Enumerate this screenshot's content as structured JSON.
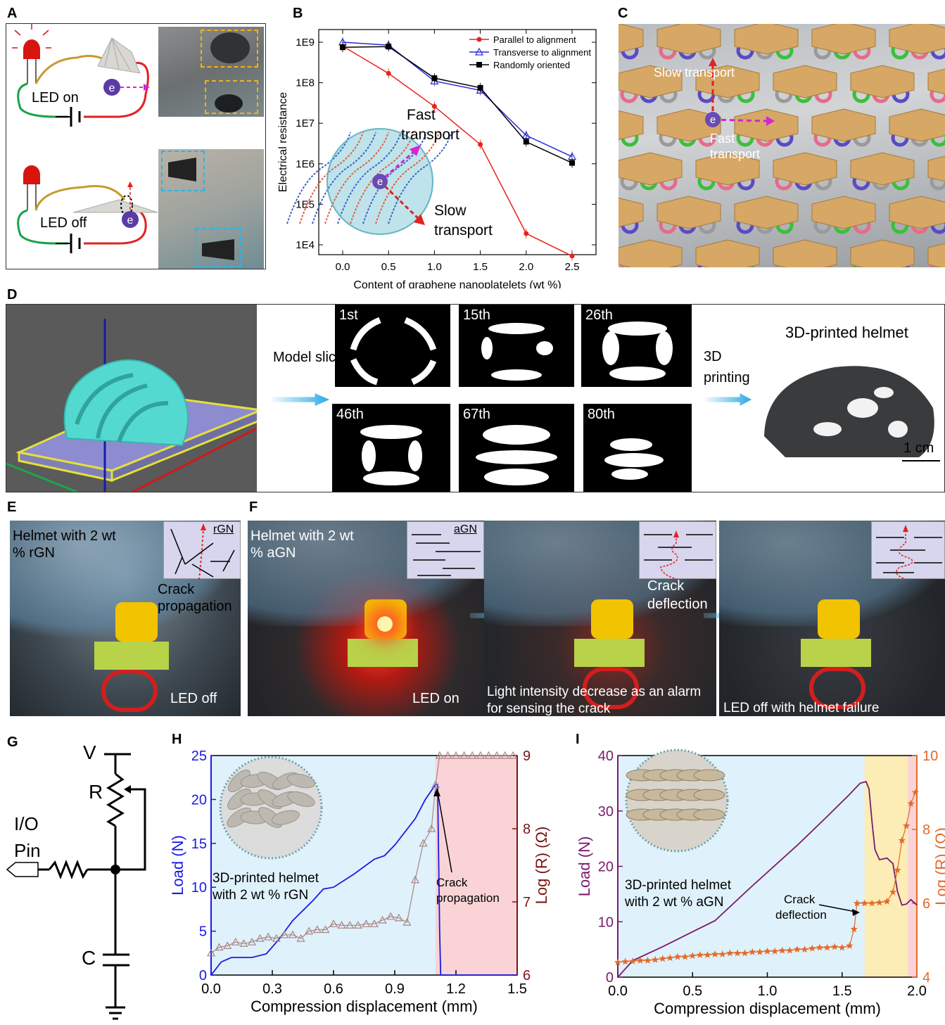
{
  "panels": {
    "A": {
      "label": "A",
      "led_on": "LED on",
      "led_off": "LED off",
      "electron": "e"
    },
    "B": {
      "label": "B"
    },
    "C": {
      "label": "C",
      "slow": "Slow transport",
      "fast": "Fast transport",
      "electron": "e"
    },
    "D": {
      "label": "D",
      "model_sliced": "Model sliced",
      "printing": "3D printing",
      "helmet_title": "3D-printed helmet",
      "scale": "1 cm",
      "slices": [
        "1st",
        "15th",
        "26th",
        "46th",
        "67th",
        "80th"
      ]
    },
    "E": {
      "label": "E",
      "caption": "Helmet with 2 wt % rGN",
      "inset_label": "rGN",
      "crack": "Crack propagation",
      "led": "LED off"
    },
    "F": {
      "label": "F",
      "caption": "Helmet with 2 wt % aGN",
      "inset_label": "aGN",
      "led_on": "LED on",
      "middle_caption": "Light intensity decrease as an alarm for sensing the crack",
      "crack": "Crack deflection",
      "right_caption": "LED off with helmet failure"
    },
    "G": {
      "label": "G",
      "V": "V",
      "R": "R",
      "C": "C",
      "io": "I/O",
      "pin": "Pin"
    },
    "H": {
      "label": "H",
      "inset_text": "3D-printed helmet with 2 wt % rGN",
      "annotation": "Crack propagation"
    },
    "I": {
      "label": "I",
      "inset_text": "3D-printed helmet with 2 wt % aGN",
      "annotation": "Crack deflection"
    }
  },
  "chart_data": [
    {
      "id": "B",
      "type": "line",
      "xlabel": "Content of graphene nanoplatelets (wt %)",
      "ylabel": "Electrical resistance",
      "log_y": true,
      "ylim": [
        10000,
        1000000000
      ],
      "xlim": [
        0,
        2.5
      ],
      "xticks": [
        "0.0",
        "0.5",
        "1.0",
        "1.5",
        "2.0",
        "2.5"
      ],
      "yticks": [
        "1E4",
        "1E5",
        "1E6",
        "1E7",
        "1E8",
        "1E9"
      ],
      "legend_position": "top-right",
      "x": [
        0.0,
        0.5,
        1.0,
        1.5,
        2.0,
        2.5
      ],
      "series": [
        {
          "name": "Parallel to alignment",
          "color": "#e8231b",
          "marker": "circle",
          "values": [
            800000000,
            170000000,
            26000000,
            3000000,
            19000,
            5300
          ]
        },
        {
          "name": "Transverse to alignment",
          "color": "#2b2bd9",
          "marker": "triangle-open",
          "values": [
            1000000000,
            850000000,
            110000000,
            65000000,
            5000000,
            1500000
          ]
        },
        {
          "name": "Randomly oriented",
          "color": "#000000",
          "marker": "square",
          "values": [
            750000000,
            780000000,
            130000000,
            75000000,
            3500000,
            1050000
          ]
        }
      ],
      "inset_fast": "Fast transport",
      "inset_slow": "Slow transport",
      "electron": "e"
    },
    {
      "id": "H",
      "type": "line",
      "xlabel": "Compression displacement (mm)",
      "ylabel_left": "Load (N)",
      "ylabel_right": "Log (R) (Ω)",
      "xlim": [
        0,
        1.5
      ],
      "ylim_left": [
        0,
        25
      ],
      "ylim_right": [
        6,
        9
      ],
      "xticks": [
        "0.0",
        "0.3",
        "0.6",
        "0.9",
        "1.2",
        "1.5"
      ],
      "yticks_left": [
        "0",
        "5",
        "10",
        "15",
        "20",
        "25"
      ],
      "yticks_right": [
        "6",
        "7",
        "8",
        "9"
      ],
      "regions": [
        {
          "from": 0,
          "to": 1.1,
          "color": "#dff1fa"
        },
        {
          "from": 1.1,
          "to": 1.5,
          "color": "#f9d3d6"
        }
      ],
      "series": [
        {
          "name": "Load",
          "axis": "left",
          "color": "#1a1ae6",
          "x": [
            0.0,
            0.05,
            0.1,
            0.2,
            0.27,
            0.33,
            0.4,
            0.5,
            0.55,
            0.6,
            0.7,
            0.8,
            0.85,
            0.9,
            1.0,
            1.05,
            1.1,
            1.11,
            1.12,
            1.125,
            1.5
          ],
          "values": [
            0.0,
            1.5,
            2.0,
            2.0,
            2.4,
            4.0,
            6.2,
            8.5,
            9.8,
            10.0,
            11.5,
            13.2,
            13.6,
            14.8,
            17.8,
            20.0,
            21.7,
            21.7,
            5.0,
            0.0,
            0.0
          ]
        },
        {
          "name": "Log (R)",
          "axis": "right",
          "color": "#a98483",
          "marker": "triangle-open",
          "x": [
            0.0,
            0.04,
            0.08,
            0.12,
            0.16,
            0.2,
            0.24,
            0.28,
            0.32,
            0.36,
            0.4,
            0.44,
            0.48,
            0.52,
            0.56,
            0.6,
            0.64,
            0.68,
            0.72,
            0.76,
            0.8,
            0.84,
            0.88,
            0.92,
            0.96,
            1.0,
            1.04,
            1.08,
            1.1,
            1.12,
            1.16,
            1.2,
            1.24,
            1.28,
            1.32,
            1.36,
            1.4,
            1.44,
            1.48
          ],
          "values": [
            6.3,
            6.38,
            6.4,
            6.45,
            6.43,
            6.45,
            6.5,
            6.52,
            6.5,
            6.55,
            6.55,
            6.5,
            6.6,
            6.62,
            6.62,
            6.7,
            6.68,
            6.68,
            6.68,
            6.7,
            6.7,
            6.75,
            6.8,
            6.78,
            6.72,
            7.3,
            7.8,
            8.0,
            8.6,
            9.0,
            9.0,
            9.0,
            9.0,
            9.0,
            9.0,
            9.0,
            9.0,
            9.0,
            9.0
          ]
        }
      ]
    },
    {
      "id": "I",
      "type": "line",
      "xlabel": "Compression displacement (mm)",
      "ylabel_left": "Load (N)",
      "ylabel_right": "Log (R) (Ω)",
      "xlim": [
        0,
        2.0
      ],
      "ylim_left": [
        0,
        40
      ],
      "ylim_right": [
        4,
        10
      ],
      "xticks": [
        "0.0",
        "0.5",
        "1.0",
        "1.5",
        "2.0"
      ],
      "yticks_left": [
        "0",
        "10",
        "20",
        "30",
        "40"
      ],
      "yticks_right": [
        "4",
        "6",
        "8",
        "10"
      ],
      "regions": [
        {
          "from": 0,
          "to": 1.65,
          "color": "#dff1fa"
        },
        {
          "from": 1.65,
          "to": 1.94,
          "color": "#fcecb6"
        },
        {
          "from": 1.94,
          "to": 2.05,
          "color": "#f9d3d6"
        }
      ],
      "series": [
        {
          "name": "Load",
          "axis": "left",
          "color": "#7a1a6d",
          "x": [
            0.0,
            0.1,
            0.3,
            0.5,
            0.65,
            0.9,
            1.2,
            1.4,
            1.55,
            1.62,
            1.66,
            1.68,
            1.7,
            1.72,
            1.75,
            1.8,
            1.84,
            1.87,
            1.9,
            1.93,
            1.96,
            2.0
          ],
          "values": [
            0.0,
            3.0,
            5.5,
            8.2,
            10.2,
            16.5,
            23.8,
            29.0,
            33.0,
            35.0,
            35.3,
            34.0,
            28.0,
            23.0,
            21.2,
            21.5,
            20.5,
            15.5,
            13.0,
            13.2,
            14.0,
            13.0
          ]
        },
        {
          "name": "Log (R)",
          "axis": "right",
          "color": "#e36a2a",
          "marker": "star",
          "x": [
            0.0,
            0.05,
            0.1,
            0.15,
            0.2,
            0.25,
            0.3,
            0.35,
            0.4,
            0.45,
            0.5,
            0.55,
            0.6,
            0.65,
            0.7,
            0.75,
            0.8,
            0.85,
            0.9,
            0.95,
            1.0,
            1.05,
            1.1,
            1.15,
            1.2,
            1.25,
            1.3,
            1.35,
            1.4,
            1.45,
            1.5,
            1.55,
            1.58,
            1.6,
            1.65,
            1.7,
            1.75,
            1.8,
            1.84,
            1.87,
            1.9,
            1.93,
            1.96,
            1.99
          ],
          "values": [
            4.4,
            4.42,
            4.43,
            4.45,
            4.45,
            4.47,
            4.5,
            4.52,
            4.55,
            4.55,
            4.58,
            4.6,
            4.6,
            4.62,
            4.62,
            4.65,
            4.65,
            4.65,
            4.68,
            4.68,
            4.7,
            4.7,
            4.72,
            4.72,
            4.75,
            4.75,
            4.78,
            4.8,
            4.8,
            4.82,
            4.8,
            4.85,
            5.3,
            6.0,
            6.0,
            6.0,
            6.02,
            6.05,
            6.3,
            6.9,
            7.7,
            8.1,
            8.7,
            9.0
          ]
        }
      ]
    }
  ]
}
